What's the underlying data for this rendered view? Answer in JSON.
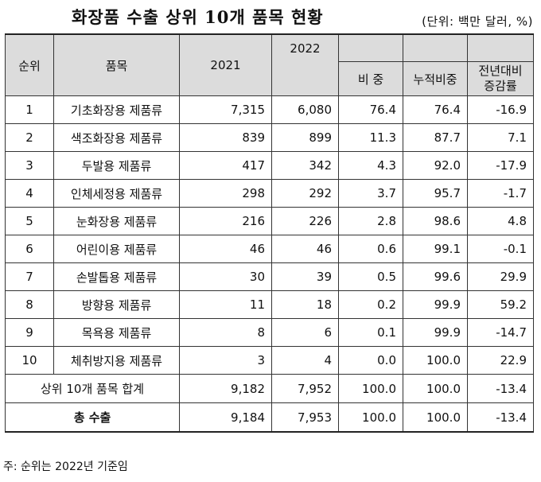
{
  "title": "화장품 수출 상위 10개 품목 현황",
  "unit": "(단위: 백만 달러, %)",
  "headers": {
    "rank": "순위",
    "item": "품목",
    "y2021": "2021",
    "y2022": "2022",
    "share": "비 중",
    "cumulative": "누적비중",
    "yoy_line1": "전년대비",
    "yoy_line2": "증감률"
  },
  "rows": [
    {
      "rank": "1",
      "item": "기초화장용 제품류",
      "y2021": "7,315",
      "y2022": "6,080",
      "share": "76.4",
      "cumulative": "76.4",
      "yoy": "-16.9"
    },
    {
      "rank": "2",
      "item": "색조화장용 제품류",
      "y2021": "839",
      "y2022": "899",
      "share": "11.3",
      "cumulative": "87.7",
      "yoy": "7.1"
    },
    {
      "rank": "3",
      "item": "두발용 제품류",
      "y2021": "417",
      "y2022": "342",
      "share": "4.3",
      "cumulative": "92.0",
      "yoy": "-17.9"
    },
    {
      "rank": "4",
      "item": "인체세정용 제품류",
      "y2021": "298",
      "y2022": "292",
      "share": "3.7",
      "cumulative": "95.7",
      "yoy": "-1.7"
    },
    {
      "rank": "5",
      "item": "눈화장용 제품류",
      "y2021": "216",
      "y2022": "226",
      "share": "2.8",
      "cumulative": "98.6",
      "yoy": "4.8"
    },
    {
      "rank": "6",
      "item": "어린이용 제품류",
      "y2021": "46",
      "y2022": "46",
      "share": "0.6",
      "cumulative": "99.1",
      "yoy": "-0.1"
    },
    {
      "rank": "7",
      "item": "손발톱용 제품류",
      "y2021": "30",
      "y2022": "39",
      "share": "0.5",
      "cumulative": "99.6",
      "yoy": "29.9"
    },
    {
      "rank": "8",
      "item": "방향용 제품류",
      "y2021": "11",
      "y2022": "18",
      "share": "0.2",
      "cumulative": "99.9",
      "yoy": "59.2"
    },
    {
      "rank": "9",
      "item": "목욕용 제품류",
      "y2021": "8",
      "y2022": "6",
      "share": "0.1",
      "cumulative": "99.9",
      "yoy": "-14.7"
    },
    {
      "rank": "10",
      "item": "체취방지용 제품류",
      "y2021": "3",
      "y2022": "4",
      "share": "0.0",
      "cumulative": "100.0",
      "yoy": "22.9"
    }
  ],
  "subtotal": {
    "label": "상위 10개 품목 합계",
    "y2021": "9,182",
    "y2022": "7,952",
    "share": "100.0",
    "cumulative": "100.0",
    "yoy": "-13.4"
  },
  "total": {
    "label": "총 수출",
    "y2021": "9,184",
    "y2022": "7,953",
    "share": "100.0",
    "cumulative": "100.0",
    "yoy": "-13.4"
  },
  "footnote": "주: 순위는 2022년 기준임"
}
